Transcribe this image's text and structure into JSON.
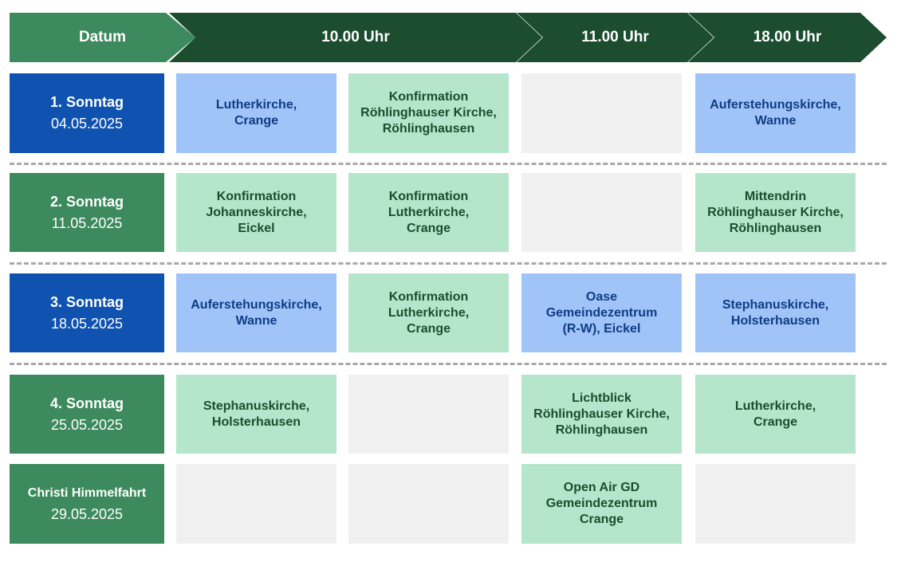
{
  "header": [
    "Datum",
    "10.00 Uhr",
    "11.00 Uhr",
    "18.00 Uhr"
  ],
  "colors": {
    "header_first": "#3d8a5e",
    "header_dark": "#1b4d2e",
    "date_blue": "#1052b0",
    "date_green": "#3d8a5e",
    "cell_blue": "#a0c4f8",
    "cell_mint": "#b5e6cb",
    "cell_empty": "#f0f0f0"
  },
  "rows": [
    {
      "label": "1. Sonntag",
      "date": "04.05.2025",
      "style": "dblue",
      "cells": [
        {
          "style": "blue",
          "lines": [
            "Lutherkirche,",
            "Crange"
          ]
        },
        {
          "style": "mint",
          "lines": [
            "Konfirmation",
            "Röhlinghauser Kirche,",
            "Röhlinghausen"
          ]
        },
        {
          "style": "gray",
          "lines": []
        },
        {
          "style": "blue",
          "lines": [
            "Auferstehungskirche,",
            "Wanne"
          ]
        }
      ]
    },
    {
      "label": "2. Sonntag",
      "date": "11.05.2025",
      "style": "green",
      "cells": [
        {
          "style": "mint",
          "lines": [
            "Konfirmation",
            "Johanneskirche,",
            "Eickel"
          ]
        },
        {
          "style": "mint",
          "lines": [
            "Konfirmation",
            "Lutherkirche,",
            "Crange"
          ]
        },
        {
          "style": "gray",
          "lines": []
        },
        {
          "style": "mint",
          "lines": [
            "Mittendrin",
            "Röhlinghauser Kirche,",
            "Röhlinghausen"
          ]
        }
      ]
    },
    {
      "label": "3. Sonntag",
      "date": "18.05.2025",
      "style": "dblue",
      "cells": [
        {
          "style": "blue",
          "lines": [
            "Auferstehungskirche,",
            "Wanne"
          ]
        },
        {
          "style": "mint",
          "lines": [
            "Konfirmation",
            "Lutherkirche,",
            "Crange"
          ]
        },
        {
          "style": "blue",
          "lines": [
            "Oase",
            "Gemeindezentrum",
            "(R-W), Eickel"
          ]
        },
        {
          "style": "blue",
          "lines": [
            "Stephanuskirche,",
            "Holsterhausen"
          ]
        }
      ]
    },
    {
      "label": "4. Sonntag",
      "date": "25.05.2025",
      "style": "green",
      "cells": [
        {
          "style": "mint",
          "lines": [
            "Stephanuskirche,",
            "Holsterhausen"
          ]
        },
        {
          "style": "gray",
          "lines": []
        },
        {
          "style": "mint",
          "lines": [
            "Lichtblick",
            "Röhlinghauser Kirche,",
            "Röhlinghausen"
          ]
        },
        {
          "style": "mint",
          "lines": [
            "Lutherkirche,",
            "Crange"
          ]
        }
      ]
    },
    {
      "label": "Christi Himmelfahrt",
      "date": "29.05.2025",
      "style": "green",
      "cells": [
        {
          "style": "gray",
          "lines": []
        },
        {
          "style": "gray",
          "lines": []
        },
        {
          "style": "mint",
          "lines": [
            "Open Air GD",
            "Gemeindezentrum",
            "Crange"
          ]
        },
        {
          "style": "gray",
          "lines": []
        }
      ]
    }
  ]
}
